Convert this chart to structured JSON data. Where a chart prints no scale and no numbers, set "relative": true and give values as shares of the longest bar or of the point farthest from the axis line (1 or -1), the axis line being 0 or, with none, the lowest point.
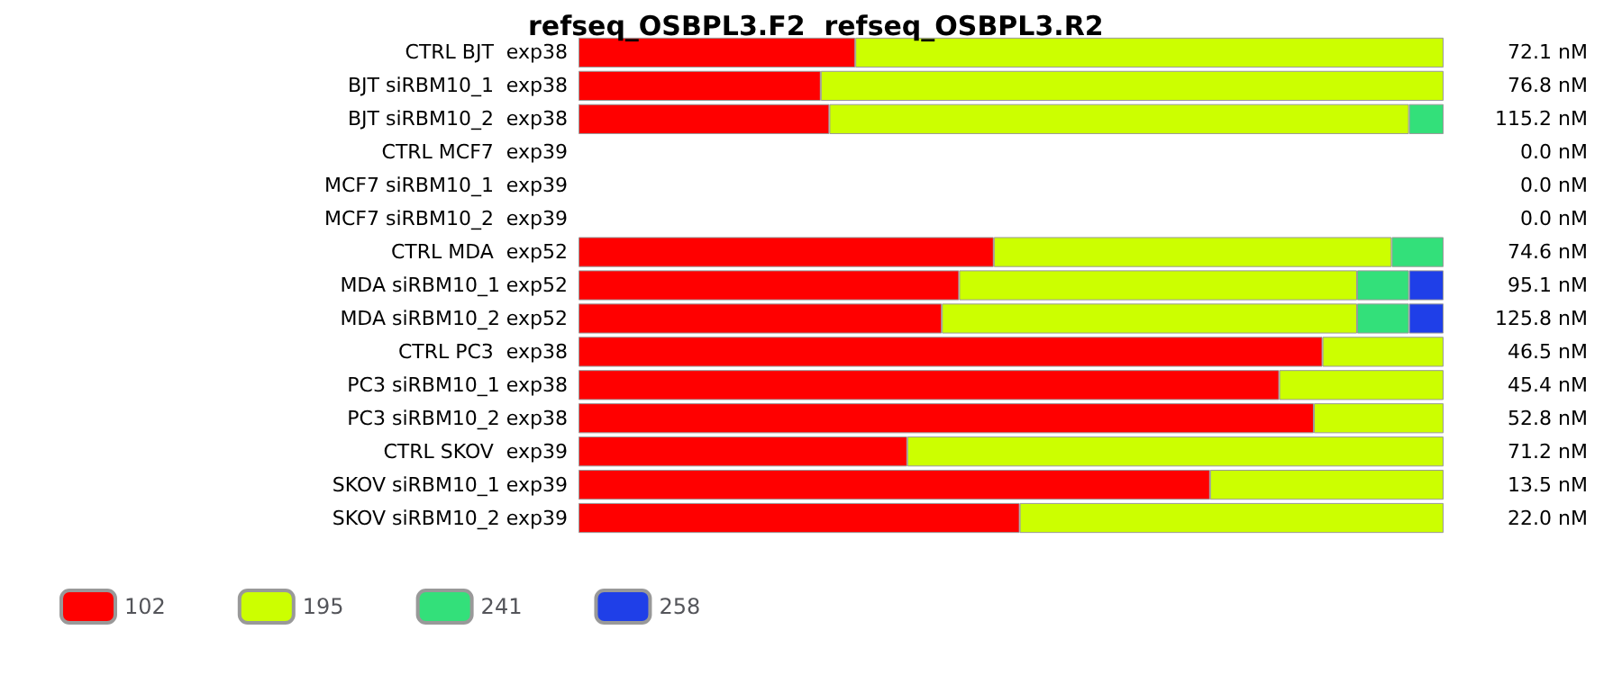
{
  "chart_data": {
    "type": "bar",
    "orientation": "horizontal",
    "stacked": true,
    "relative": true,
    "title": "refseq_OSBPL3.F2  refseq_OSBPL3.R2",
    "categories": [
      "CTRL BJT  exp38",
      "BJT siRBM10_1  exp38",
      "BJT siRBM10_2  exp38",
      "CTRL MCF7  exp39",
      "MCF7 siRBM10_1  exp39",
      "MCF7 siRBM10_2  exp39",
      "CTRL MDA  exp52",
      "MDA siRBM10_1 exp52",
      "MDA siRBM10_2 exp52",
      "CTRL PC3  exp38",
      "PC3 siRBM10_1 exp38",
      "PC3 siRBM10_2 exp38",
      "CTRL SKOV  exp39",
      "SKOV siRBM10_1 exp39",
      "SKOV siRBM10_2 exp39"
    ],
    "series": [
      {
        "name": "102",
        "color": "#ff0000",
        "values": [
          0.32,
          0.28,
          0.29,
          null,
          null,
          null,
          0.48,
          0.44,
          0.42,
          0.86,
          0.81,
          0.85,
          0.38,
          0.73,
          0.51
        ]
      },
      {
        "name": "195",
        "color": "#ccff00",
        "values": [
          0.68,
          0.72,
          0.67,
          null,
          null,
          null,
          0.46,
          0.46,
          0.48,
          0.14,
          0.19,
          0.15,
          0.62,
          0.27,
          0.49
        ]
      },
      {
        "name": "241",
        "color": "#33e07a",
        "values": [
          null,
          null,
          0.04,
          null,
          null,
          null,
          0.06,
          0.06,
          0.06,
          null,
          null,
          null,
          null,
          null,
          null
        ]
      },
      {
        "name": "258",
        "color": "#1f3fe8",
        "values": [
          null,
          null,
          null,
          null,
          null,
          null,
          null,
          0.04,
          0.04,
          null,
          null,
          null,
          null,
          null,
          null
        ]
      }
    ],
    "annotations": [
      "72.1 nM",
      "76.8 nM",
      "115.2 nM",
      "0.0 nM",
      "0.0 nM",
      "0.0 nM",
      "74.6 nM",
      "95.1 nM",
      "125.8 nM",
      "46.5 nM",
      "45.4 nM",
      "52.8 nM",
      "71.2 nM",
      "13.5 nM",
      "22.0 nM"
    ],
    "legend": "bottom"
  }
}
